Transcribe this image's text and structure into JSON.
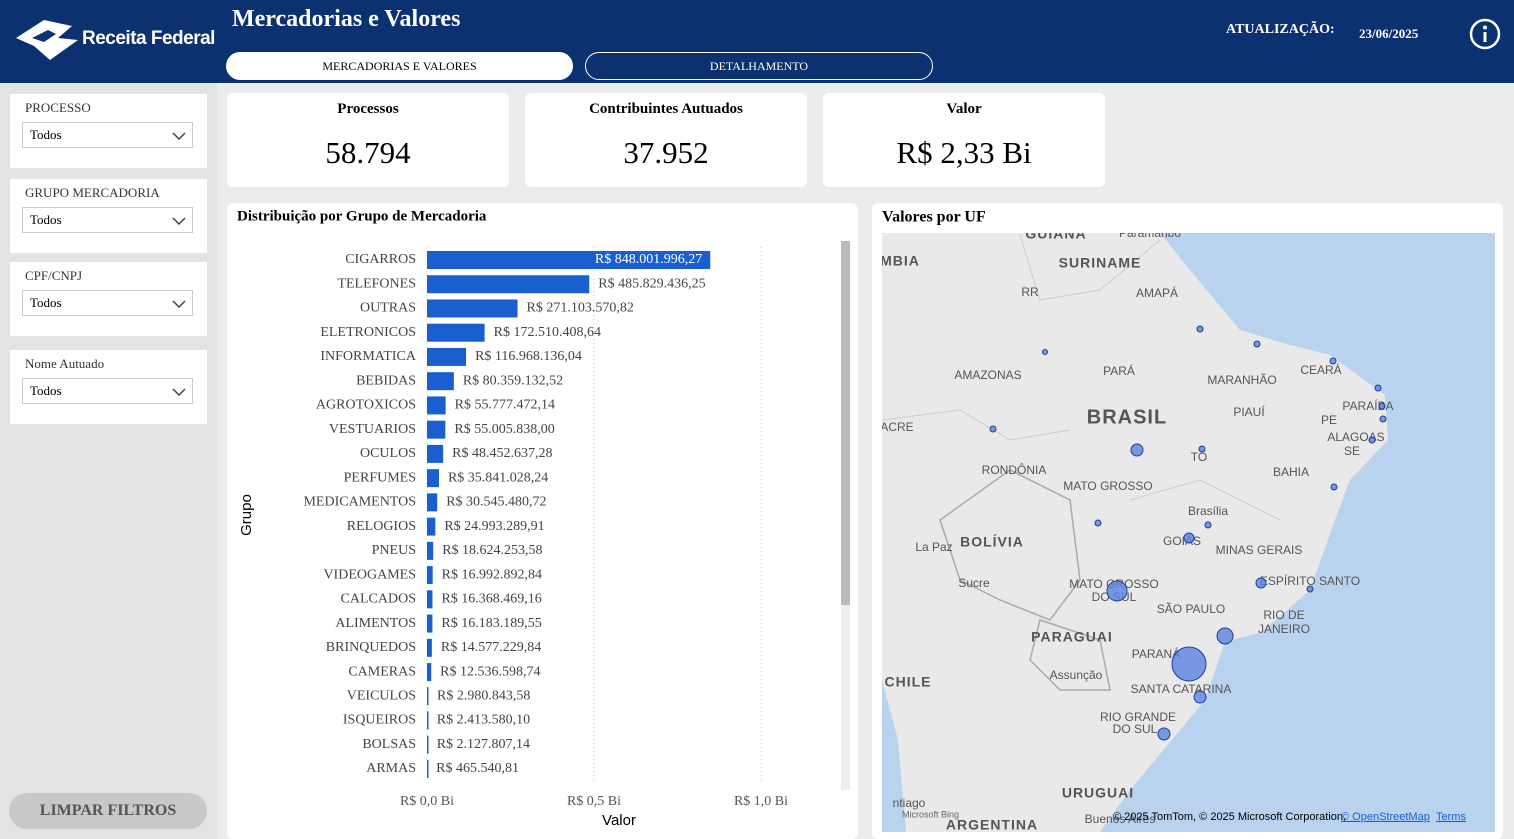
{
  "header": {
    "logo": "Receita Federal",
    "title": "Mercadorias e Valores",
    "tabs": [
      "MERCADORIAS E VALORES",
      "DETALHAMENTO"
    ],
    "update_label": "ATUALIZAÇÃO:",
    "update_date": "23/06/2025"
  },
  "filters": [
    {
      "label": "PROCESSO",
      "value": "Todos"
    },
    {
      "label": "GRUPO MERCADORIA",
      "value": "Todos"
    },
    {
      "label": "CPF/CNPJ",
      "value": "Todos"
    },
    {
      "label": "Nome Autuado",
      "value": "Todos"
    }
  ],
  "clear_button": "LIMPAR FILTROS",
  "kpis": [
    {
      "label": "Processos",
      "value": "58.794"
    },
    {
      "label": "Contribuintes Autuados",
      "value": "37.952"
    },
    {
      "label": "Valor",
      "value": "R$ 2,33 Bi"
    }
  ],
  "chart_data": {
    "type": "bar",
    "orientation": "horizontal",
    "title": "Distribuição por Grupo de Mercadoria",
    "x_label": "Valor",
    "y_label": "Grupo",
    "color": "#1a5fd0",
    "categories": [
      "CIGARROS",
      "TELEFONES",
      "OUTRAS",
      "ELETRONICOS",
      "INFORMATICA",
      "BEBIDAS",
      "AGROTOXICOS",
      "VESTUARIOS",
      "OCULOS",
      "PERFUMES",
      "MEDICAMENTOS",
      "RELOGIOS",
      "PNEUS",
      "VIDEOGAMES",
      "CALCADOS",
      "ALIMENTOS",
      "BRINQUEDOS",
      "CAMERAS",
      "VEICULOS",
      "ISQUEIROS",
      "BOLSAS",
      "ARMAS"
    ],
    "values": [
      0.84800199627,
      0.48582943625,
      0.27110357082,
      0.17251040864,
      0.11696813604,
      0.08035913252,
      0.05577747214,
      0.055005838,
      0.04845263728,
      0.03584102824,
      0.03054548072,
      0.02499328991,
      0.01862425358,
      0.01699289284,
      0.01636846916,
      0.01618318955,
      0.01457722984,
      0.01253659874,
      0.00298084358,
      0.0024135801,
      0.00212780714,
      0.00046554081
    ],
    "value_labels": [
      "R$ 848.001.996,27",
      "R$ 485.829.436,25",
      "R$ 271.103.570,82",
      "R$ 172.510.408,64",
      "R$ 116.968.136,04",
      "R$ 80.359.132,52",
      "R$ 55.777.472,14",
      "R$ 55.005.838,00",
      "R$ 48.452.637,28",
      "R$ 35.841.028,24",
      "R$ 30.545.480,72",
      "R$ 24.993.289,91",
      "R$ 18.624.253,58",
      "R$ 16.992.892,84",
      "R$ 16.368.469,16",
      "R$ 16.183.189,55",
      "R$ 14.577.229,84",
      "R$ 12.536.598,74",
      "R$ 2.980.843,58",
      "R$ 2.413.580,10",
      "R$ 2.127.807,14",
      "R$ 465.540,81"
    ],
    "xlim": [
      0,
      1.2
    ],
    "xticks": [
      {
        "value": 0,
        "label": "R$ 0,0 Bi"
      },
      {
        "value": 0.5,
        "label": "R$ 0,5 Bi"
      },
      {
        "value": 1,
        "label": "R$ 1,0 Bi"
      }
    ],
    "grid": true
  },
  "map": {
    "title": "Valores por UF",
    "labels": [
      "GUIANA",
      "Paramaribo",
      "SURINAME",
      "MBIA",
      "RR",
      "AMAPÁ",
      "AMAZONAS",
      "PARÁ",
      "MARANHÃO",
      "CEARÁ",
      "PARAÍBA",
      "PIAUÍ",
      "BRASIL",
      "PE",
      "ACRE",
      "ALAGOAS",
      "SE",
      "TO",
      "RONDÔNIA",
      "BAHIA",
      "MATO GROSSO",
      "Brasília",
      "BOLÍVIA",
      "La Paz",
      "GOIÁS",
      "MINAS GERAIS",
      "Sucre",
      "MATO GROSSO",
      "DO SUL",
      "ESPÍRITO SANTO",
      "SÃO PAULO",
      "RIO DE",
      "JANEIRO",
      "PARAGUAI",
      "PARANÁ",
      "Assunção",
      "CHILE",
      "SANTA CATARINA",
      "RIO GRANDE",
      "DO SUL",
      "URUGUAI",
      "ntiago",
      "ARGENTINA",
      "Buenos Aires"
    ],
    "attribution": "© 2025 TomTom, © 2025 Microsoft Corporation,",
    "osm": "© OpenStreetMap",
    "terms": "Terms",
    "bing": "Microsoft Bing"
  }
}
